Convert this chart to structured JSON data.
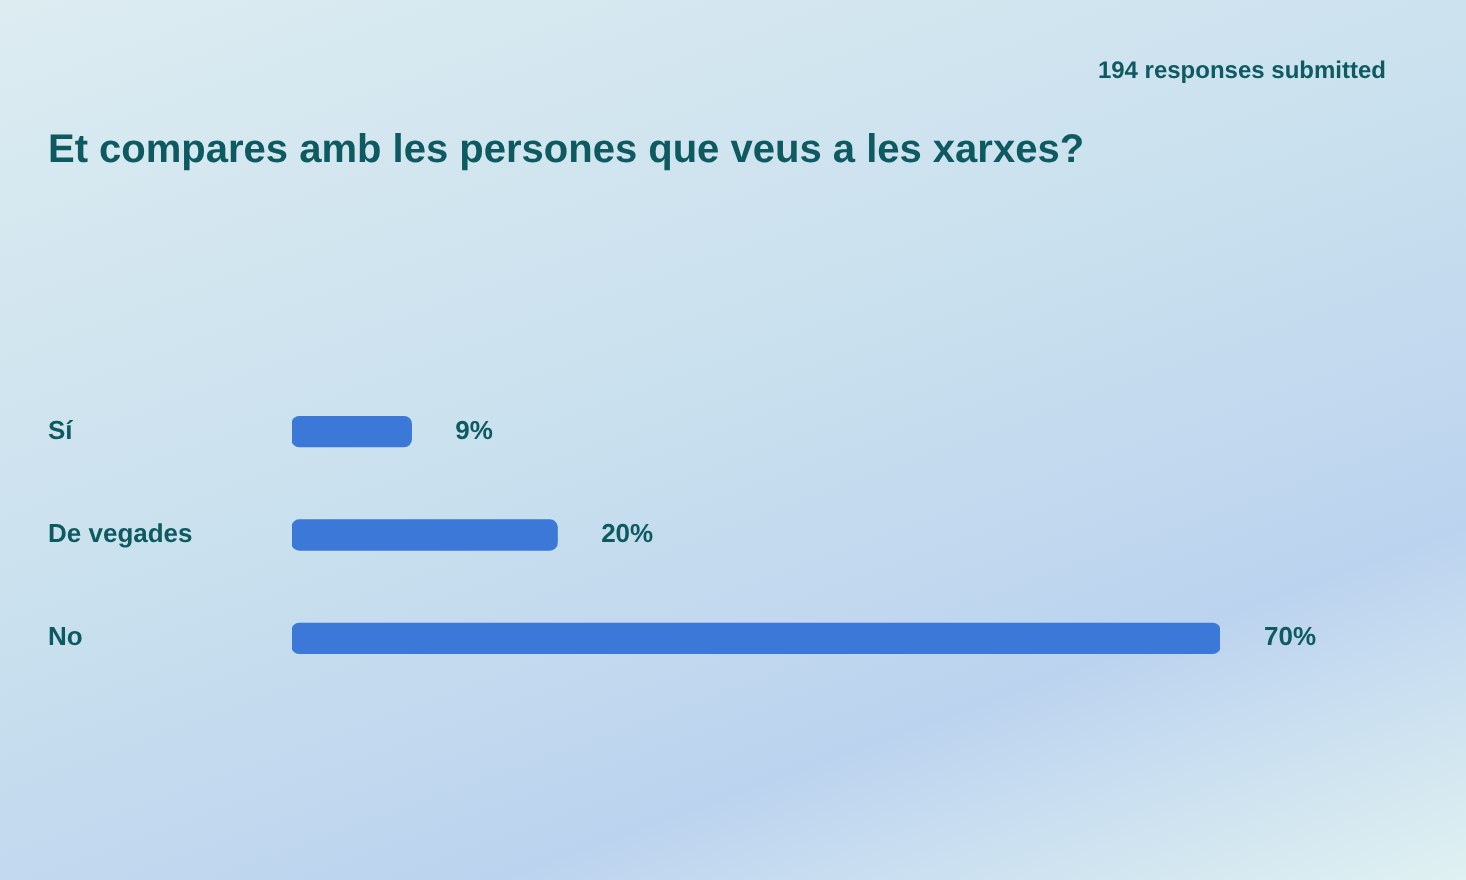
{
  "chart_data": {
    "type": "bar",
    "orientation": "horizontal",
    "title": "Et compares amb les persones que veus a les xarxes?",
    "annotations": [
      "194 responses submitted"
    ],
    "categories": [
      "Sí",
      "De vegades",
      "No"
    ],
    "values": [
      9,
      20,
      70
    ],
    "value_labels": [
      "9%",
      "20%",
      "70%"
    ],
    "color": "#3c78d8",
    "grid": false,
    "legend": false
  }
}
